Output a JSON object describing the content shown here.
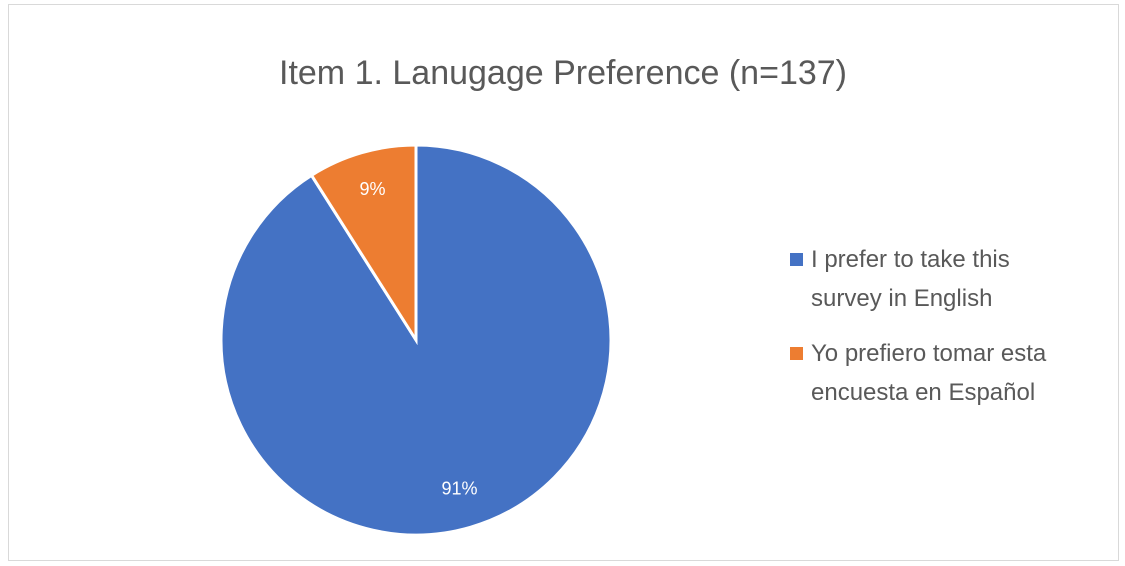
{
  "chart_data": {
    "type": "pie",
    "title": "Item 1. Lanugage Preference (n=137)",
    "categories": [
      "I prefer to take this survey in English",
      "Yo prefiero tomar esta encuesta en Español"
    ],
    "values": [
      91,
      9
    ],
    "value_labels": [
      "91%",
      "9%"
    ],
    "colors": [
      "#4472c4",
      "#ed7d31"
    ],
    "legend": "right"
  }
}
